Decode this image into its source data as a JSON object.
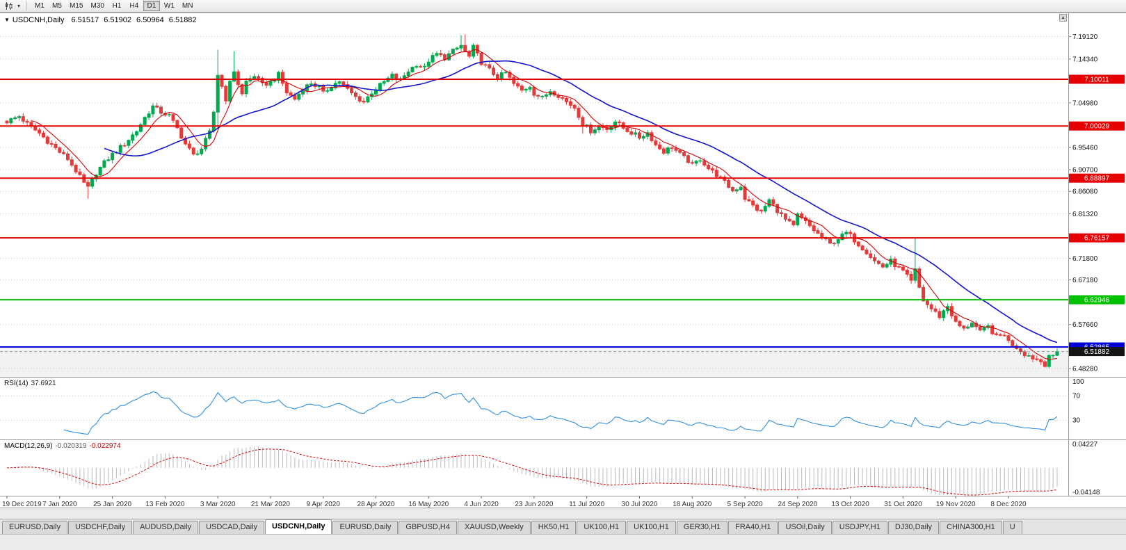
{
  "toolbar": {
    "timeframes": [
      {
        "label": "M1",
        "active": false
      },
      {
        "label": "M5",
        "active": false
      },
      {
        "label": "M15",
        "active": false
      },
      {
        "label": "M30",
        "active": false
      },
      {
        "label": "H1",
        "active": false
      },
      {
        "label": "H4",
        "active": false
      },
      {
        "label": "D1",
        "active": true
      },
      {
        "label": "W1",
        "active": false
      },
      {
        "label": "MN",
        "active": false
      }
    ],
    "chart_type_icon": "candlestick-chart",
    "dropdown_glyph": "▾",
    "scroll_up_glyph": "▴"
  },
  "title_bar": {
    "expander_glyph": "▼",
    "symbol_period": "USDCNH,Daily",
    "open": "6.51517",
    "high": "6.51902",
    "low": "6.50964",
    "close": "6.51882"
  },
  "chart_data": {
    "type": "candlestick",
    "symbol": "USDCNH",
    "timeframe": "Daily",
    "colors": {
      "up": "#00a94f",
      "down": "#e33a3a",
      "grid": "#cacaca",
      "background": "#ffffff"
    },
    "x_labels": [
      "19 Dec 2019",
      "7 Jan 2020",
      "25 Jan 2020",
      "13 Feb 2020",
      "3 Mar 2020",
      "21 Mar 2020",
      "9 Apr 2020",
      "28 Apr 2020",
      "16 May 2020",
      "4 Jun 2020",
      "23 Jun 2020",
      "11 Jul 2020",
      "30 Jul 2020",
      "18 Aug 2020",
      "5 Sep 2020",
      "24 Sep 2020",
      "13 Oct 2020",
      "31 Oct 2020",
      "19 Nov 2020",
      "8 Dec 2020"
    ],
    "x_label_step": 13,
    "y_axis": {
      "price_min": 6.4648,
      "price_max": 7.2411,
      "ticks": [
        {
          "label": "7.19120",
          "value": 7.1912
        },
        {
          "label": "7.14340",
          "value": 7.1434
        },
        {
          "label": "7.04980",
          "value": 7.0498
        },
        {
          "label": "6.95460",
          "value": 6.9546
        },
        {
          "label": "6.90700",
          "value": 6.907
        },
        {
          "label": "6.86080",
          "value": 6.8608
        },
        {
          "label": "6.81320",
          "value": 6.8132
        },
        {
          "label": "6.71800",
          "value": 6.718
        },
        {
          "label": "6.67180",
          "value": 6.6718
        },
        {
          "label": "6.57660",
          "value": 6.5766
        },
        {
          "label": "6.48280",
          "value": 6.4828
        }
      ]
    },
    "h_lines": [
      {
        "name": "resistance-line-1",
        "label": "7.10011",
        "value": 7.10011,
        "color": "#e60000"
      },
      {
        "name": "resistance-line-2",
        "label": "7.00029",
        "value": 7.00029,
        "color": "#e60000"
      },
      {
        "name": "resistance-line-3",
        "label": "6.88897",
        "value": 6.88897,
        "color": "#e60000"
      },
      {
        "name": "resistance-line-4",
        "label": "6.76157",
        "value": 6.76157,
        "color": "#e60000"
      },
      {
        "name": "support-line-green",
        "label": "6.62946",
        "value": 6.62946,
        "color": "#00c000"
      },
      {
        "name": "support-line-blue",
        "label": "6.52865",
        "value": 6.52865,
        "color": "#0000d8"
      }
    ],
    "current_price": {
      "label": "6.51882",
      "value": 6.51882,
      "color": "#141414"
    },
    "support_zone": {
      "top": 6.52865,
      "color": "#f2f2f2"
    },
    "moving_averages": [
      {
        "name": "ma-fast-red",
        "period": 7,
        "color": "#d40000",
        "width": 1.1
      },
      {
        "name": "ma-slow-blue",
        "period": 25,
        "color": "#1414cc",
        "width": 1.6
      }
    ],
    "candles": {
      "count": 260,
      "wiggle": 0.005,
      "wick": 0.006,
      "last_close": 6.51882,
      "close_anchors": [
        [
          0,
          7.01
        ],
        [
          3,
          7.021
        ],
        [
          5,
          7.005
        ],
        [
          8,
          6.985
        ],
        [
          10,
          6.968
        ],
        [
          13,
          6.945
        ],
        [
          15,
          6.93
        ],
        [
          17,
          6.905
        ],
        [
          19,
          6.878
        ],
        [
          20,
          6.868
        ],
        [
          22,
          6.9
        ],
        [
          24,
          6.922
        ],
        [
          26,
          6.94
        ],
        [
          29,
          6.962
        ],
        [
          32,
          6.99
        ],
        [
          34,
          7.018
        ],
        [
          36,
          7.042
        ],
        [
          38,
          7.03
        ],
        [
          40,
          7.022
        ],
        [
          42,
          6.995
        ],
        [
          44,
          6.962
        ],
        [
          46,
          6.938
        ],
        [
          48,
          6.952
        ],
        [
          50,
          6.986
        ],
        [
          51,
          7.03
        ],
        [
          52,
          7.11
        ],
        [
          53,
          7.085
        ],
        [
          54,
          7.058
        ],
        [
          55,
          7.092
        ],
        [
          56,
          7.118
        ],
        [
          57,
          7.09
        ],
        [
          58,
          7.068
        ],
        [
          59,
          7.095
        ],
        [
          61,
          7.108
        ],
        [
          63,
          7.088
        ],
        [
          65,
          7.094
        ],
        [
          67,
          7.11
        ],
        [
          69,
          7.072
        ],
        [
          71,
          7.058
        ],
        [
          73,
          7.08
        ],
        [
          75,
          7.092
        ],
        [
          77,
          7.082
        ],
        [
          78,
          7.07
        ],
        [
          80,
          7.086
        ],
        [
          82,
          7.096
        ],
        [
          84,
          7.078
        ],
        [
          86,
          7.062
        ],
        [
          88,
          7.052
        ],
        [
          90,
          7.072
        ],
        [
          91,
          7.08
        ],
        [
          93,
          7.094
        ],
        [
          95,
          7.108
        ],
        [
          97,
          7.098
        ],
        [
          99,
          7.118
        ],
        [
          101,
          7.132
        ],
        [
          103,
          7.124
        ],
        [
          104,
          7.14
        ],
        [
          106,
          7.154
        ],
        [
          108,
          7.146
        ],
        [
          110,
          7.16
        ],
        [
          112,
          7.172
        ],
        [
          113,
          7.158
        ],
        [
          114,
          7.148
        ],
        [
          115,
          7.168
        ],
        [
          116,
          7.152
        ],
        [
          117,
          7.136
        ],
        [
          119,
          7.12
        ],
        [
          121,
          7.104
        ],
        [
          123,
          7.114
        ],
        [
          125,
          7.09
        ],
        [
          127,
          7.076
        ],
        [
          129,
          7.086
        ],
        [
          130,
          7.07
        ],
        [
          132,
          7.06
        ],
        [
          134,
          7.076
        ],
        [
          136,
          7.066
        ],
        [
          138,
          7.052
        ],
        [
          140,
          7.04
        ],
        [
          142,
          7.006
        ],
        [
          144,
          6.99
        ],
        [
          146,
          7.0
        ],
        [
          148,
          6.994
        ],
        [
          150,
          7.01
        ],
        [
          152,
          6.996
        ],
        [
          154,
          6.986
        ],
        [
          156,
          6.976
        ],
        [
          158,
          6.986
        ],
        [
          160,
          6.96
        ],
        [
          162,
          6.946
        ],
        [
          164,
          6.956
        ],
        [
          166,
          6.94
        ],
        [
          168,
          6.926
        ],
        [
          169,
          6.916
        ],
        [
          171,
          6.93
        ],
        [
          173,
          6.91
        ],
        [
          175,
          6.896
        ],
        [
          177,
          6.88
        ],
        [
          179,
          6.862
        ],
        [
          181,
          6.872
        ],
        [
          182,
          6.846
        ],
        [
          184,
          6.83
        ],
        [
          186,
          6.816
        ],
        [
          188,
          6.842
        ],
        [
          190,
          6.82
        ],
        [
          192,
          6.8
        ],
        [
          194,
          6.786
        ],
        [
          195,
          6.81
        ],
        [
          197,
          6.795
        ],
        [
          199,
          6.778
        ],
        [
          201,
          6.762
        ],
        [
          203,
          6.748
        ],
        [
          205,
          6.76
        ],
        [
          207,
          6.772
        ],
        [
          208,
          6.766
        ],
        [
          210,
          6.748
        ],
        [
          212,
          6.732
        ],
        [
          214,
          6.712
        ],
        [
          216,
          6.7
        ],
        [
          218,
          6.712
        ],
        [
          220,
          6.696
        ],
        [
          221,
          6.69
        ],
        [
          223,
          6.668
        ],
        [
          224,
          6.692
        ],
        [
          225,
          6.655
        ],
        [
          226,
          6.628
        ],
        [
          228,
          6.61
        ],
        [
          230,
          6.594
        ],
        [
          232,
          6.616
        ],
        [
          234,
          6.58
        ],
        [
          236,
          6.566
        ],
        [
          238,
          6.582
        ],
        [
          240,
          6.56
        ],
        [
          242,
          6.572
        ],
        [
          244,
          6.55
        ],
        [
          246,
          6.556
        ],
        [
          247,
          6.54
        ],
        [
          249,
          6.528
        ],
        [
          251,
          6.514
        ],
        [
          253,
          6.506
        ],
        [
          255,
          6.498
        ],
        [
          256,
          6.492
        ],
        [
          257,
          6.512
        ],
        [
          258,
          6.506
        ],
        [
          259,
          6.51882
        ]
      ],
      "wick_overrides": {
        "20": {
          "low": 6.845
        },
        "52": {
          "high": 7.163,
          "low": 6.995
        },
        "56": {
          "high": 7.16
        },
        "112": {
          "high": 7.194
        },
        "113": {
          "high": 7.196
        },
        "142": {
          "low": 6.984
        },
        "224": {
          "high": 6.763
        },
        "255": {
          "low": 6.49
        }
      }
    },
    "rsi": {
      "label": "RSI(14)",
      "value": "37.6921",
      "period": 14,
      "color": "#2f8fe0",
      "levels": [
        70,
        30
      ],
      "scale_labels": [
        {
          "label": "100",
          "value": 100
        },
        {
          "label": "70",
          "value": 70
        },
        {
          "label": "30",
          "value": 30
        }
      ],
      "range": [
        0,
        100
      ]
    },
    "macd": {
      "label": "MACD(12,26,9)",
      "value_main": "-0.020319",
      "value_signal": "-0.022974",
      "fast": 12,
      "slow": 26,
      "signal": 9,
      "histogram_color": "#b9b9b9",
      "signal_color": "#dd0000",
      "scale_labels": [
        {
          "label": "0.04227",
          "value": 0.04227
        },
        {
          "label": "-0.04148",
          "value": -0.04148
        }
      ],
      "range": [
        -0.04148,
        0.04227
      ]
    }
  },
  "tab_bar": {
    "tabs": [
      {
        "label": "EURUSD,Daily",
        "active": false
      },
      {
        "label": "USDCHF,Daily",
        "active": false
      },
      {
        "label": "AUDUSD,Daily",
        "active": false
      },
      {
        "label": "USDCAD,Daily",
        "active": false
      },
      {
        "label": "USDCNH,Daily",
        "active": true
      },
      {
        "label": "EURUSD,Daily",
        "active": false
      },
      {
        "label": "GBPUSD,H4",
        "active": false
      },
      {
        "label": "XAUUSD,Weekly",
        "active": false
      },
      {
        "label": "HK50,H1",
        "active": false
      },
      {
        "label": "UK100,H1",
        "active": false
      },
      {
        "label": "UK100,H1",
        "active": false
      },
      {
        "label": "GER30,H1",
        "active": false
      },
      {
        "label": "FRA40,H1",
        "active": false
      },
      {
        "label": "USOil,Daily",
        "active": false
      },
      {
        "label": "USDJPY,H1",
        "active": false
      },
      {
        "label": "DJ30,Daily",
        "active": false
      },
      {
        "label": "CHINA300,H1",
        "active": false
      },
      {
        "label": "U",
        "active": false
      }
    ]
  }
}
